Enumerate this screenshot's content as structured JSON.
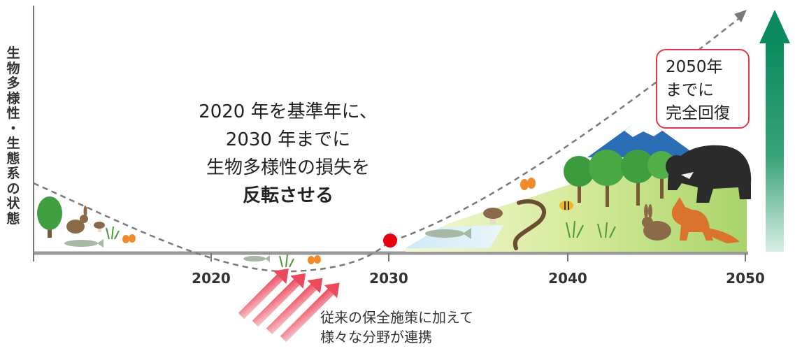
{
  "y_axis_label": [
    "生",
    "物",
    "多",
    "様",
    "性",
    "・",
    "生",
    "態",
    "系",
    "の",
    "状",
    "態"
  ],
  "center_text": {
    "line1": "2020 年を基準年に、",
    "line2": "2030 年までに",
    "line3": "生物多様性の損失を",
    "line4": "反転させる"
  },
  "goal_box": {
    "line1": "2050年",
    "line2": "までに",
    "line3": "完全回復"
  },
  "x_ticks": [
    "2020",
    "2030",
    "2040",
    "2050"
  ],
  "bottom_note": {
    "line1": "従来の保全施策に加えて",
    "line2": "様々な分野が連携"
  },
  "colors": {
    "curve": "#7a7a7a",
    "axis": "#777777",
    "marker": "#e60012",
    "goal_border": "#e23845",
    "recovery_arrow": "#0a8a5e",
    "effort_arrows": "#ef5a6a"
  },
  "icons": [
    "tree-icon",
    "rabbit-icon",
    "mushroom-icon",
    "grass-icon",
    "butterfly-icon",
    "fish-icon",
    "mountain-icon",
    "bear-icon",
    "fox-icon",
    "snake-icon",
    "bee-icon"
  ]
}
